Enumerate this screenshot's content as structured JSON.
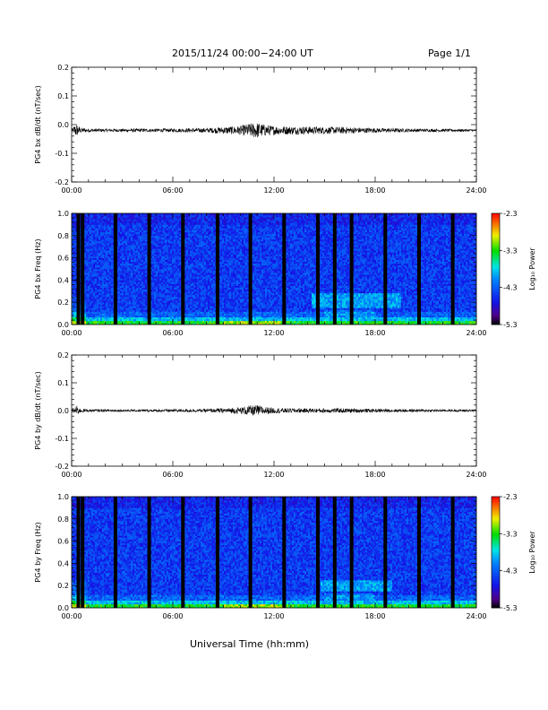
{
  "header": {
    "title": "2015/11/24  00:00−24:00 UT",
    "page": "Page 1/1"
  },
  "chart_data": [
    {
      "type": "line",
      "ylabel": "PG4 bx dB/dt (nT/sec)",
      "xlim": [
        0,
        24
      ],
      "ylim": [
        -0.2,
        0.2
      ],
      "xticks": [
        "00:00",
        "06:00",
        "12:00",
        "18:00",
        "24:00"
      ],
      "yticks": [
        "0.2",
        "0.1",
        "0.0",
        "-0.1",
        "-0.2"
      ],
      "series": [
        {
          "baseline": -0.02,
          "x": [
            0,
            0.25,
            0.5,
            1,
            2,
            4,
            6,
            8,
            9,
            10,
            10.5,
            11,
            11.5,
            12,
            13,
            14,
            15,
            16,
            17,
            18,
            20,
            22,
            24
          ],
          "amplitude": [
            0.003,
            0.025,
            0.01,
            0.006,
            0.005,
            0.006,
            0.006,
            0.008,
            0.012,
            0.016,
            0.024,
            0.028,
            0.02,
            0.016,
            0.014,
            0.014,
            0.012,
            0.012,
            0.01,
            0.008,
            0.006,
            0.005,
            0.004
          ]
        }
      ]
    },
    {
      "type": "heatmap",
      "ylabel": "PG4 bx Freq (Hz)",
      "xlim": [
        0,
        24
      ],
      "ylim": [
        0,
        1
      ],
      "xticks": [
        "00:00",
        "06:00",
        "12:00",
        "18:00",
        "24:00"
      ],
      "yticks": [
        "1.0",
        "0.8",
        "0.6",
        "0.4",
        "0.2",
        "0.0"
      ],
      "colorbar": {
        "label": "Log₁₀ Power",
        "range": [
          -5.3,
          -2.3
        ],
        "ticks": [
          "-2.3",
          "-3.3",
          "-4.3",
          "-5.3"
        ]
      },
      "data_gaps_hours": [
        0.4,
        0.65,
        2.6,
        4.6,
        6.6,
        8.65,
        10.6,
        12.6,
        14.6,
        15.6,
        16.6,
        18.6,
        20.6,
        22.6
      ],
      "enhanced_band": {
        "x_range": [
          14.2,
          19.5
        ],
        "freq_range": [
          0.15,
          0.28
        ]
      }
    },
    {
      "type": "line",
      "ylabel": "PG4 by dB/dt (nT/sec)",
      "xlim": [
        0,
        24
      ],
      "ylim": [
        -0.2,
        0.2
      ],
      "xticks": [
        "00:00",
        "06:00",
        "12:00",
        "18:00",
        "24:00"
      ],
      "yticks": [
        "0.2",
        "0.1",
        "0.0",
        "-0.1",
        "-0.2"
      ],
      "series": [
        {
          "baseline": 0.0,
          "x": [
            0,
            0.25,
            0.5,
            1,
            2,
            4,
            6,
            8,
            9,
            10,
            10.5,
            11,
            11.5,
            12,
            13,
            14,
            15,
            16,
            17,
            18,
            20,
            22,
            24
          ],
          "amplitude": [
            0.003,
            0.02,
            0.008,
            0.005,
            0.004,
            0.004,
            0.005,
            0.006,
            0.008,
            0.012,
            0.018,
            0.02,
            0.014,
            0.01,
            0.008,
            0.008,
            0.008,
            0.008,
            0.007,
            0.006,
            0.005,
            0.004,
            0.004
          ]
        }
      ]
    },
    {
      "type": "heatmap",
      "ylabel": "PG4 by Freq (Hz)",
      "xlim": [
        0,
        24
      ],
      "ylim": [
        0,
        1
      ],
      "xticks": [
        "00:00",
        "06:00",
        "12:00",
        "18:00",
        "24:00"
      ],
      "yticks": [
        "1.0",
        "0.8",
        "0.6",
        "0.4",
        "0.2",
        "0.0"
      ],
      "colorbar": {
        "label": "Log₁₀ Power",
        "range": [
          -5.3,
          -2.3
        ],
        "ticks": [
          "-2.3",
          "-3.3",
          "-4.3",
          "-5.3"
        ]
      },
      "data_gaps_hours": [
        0.4,
        0.65,
        2.6,
        4.6,
        6.6,
        8.65,
        10.6,
        12.6,
        14.6,
        15.6,
        16.6,
        18.6,
        20.6,
        22.6
      ],
      "enhanced_band": {
        "x_range": [
          14.8,
          19.0
        ],
        "freq_range": [
          0.15,
          0.25
        ]
      }
    }
  ],
  "xlabel": "Universal Time (hh:mm)"
}
